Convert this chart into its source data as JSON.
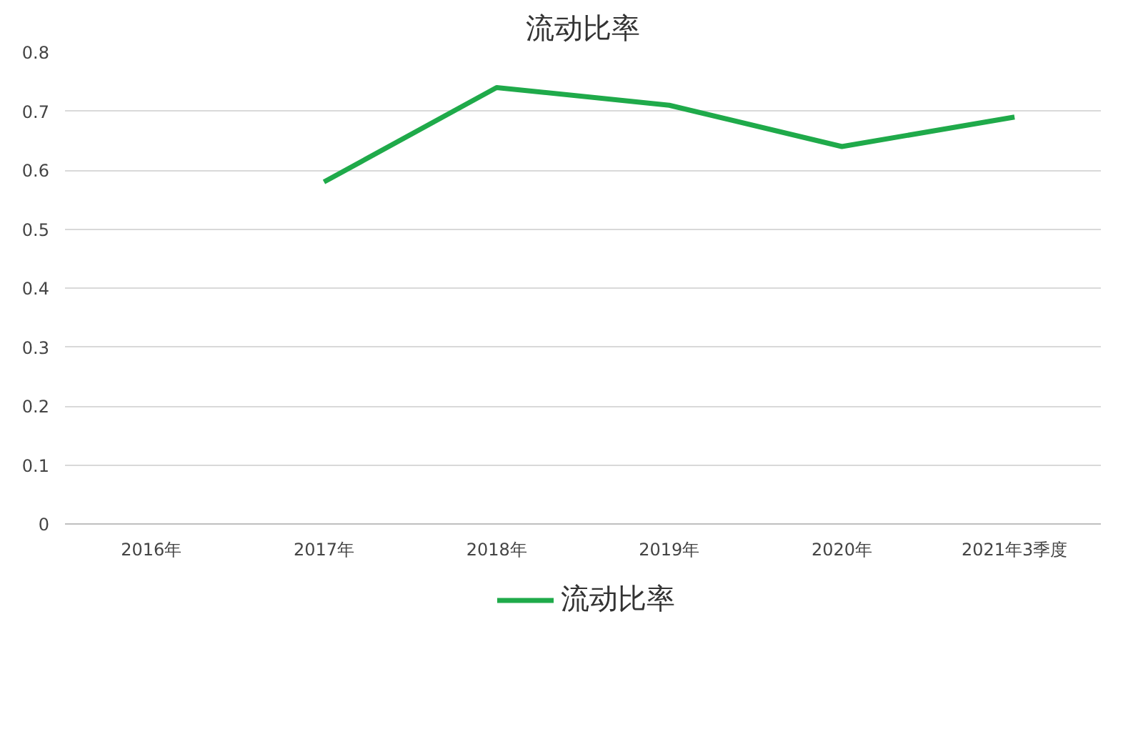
{
  "chart_data": {
    "type": "line",
    "title": "流动比率",
    "categories": [
      "2016年",
      "2017年",
      "2018年",
      "2019年",
      "2020年",
      "2021年3季度"
    ],
    "series": [
      {
        "name": "流动比率",
        "color": "#1faa4a",
        "values": [
          null,
          0.58,
          0.74,
          0.71,
          0.64,
          0.69
        ]
      }
    ],
    "ylim": [
      0,
      0.8
    ],
    "yticks": [
      0,
      0.1,
      0.2,
      0.3,
      0.4,
      0.5,
      0.6,
      0.7,
      0.8
    ],
    "grid": "y",
    "legend": "bottom",
    "marker": "none",
    "line_style": "solid"
  }
}
